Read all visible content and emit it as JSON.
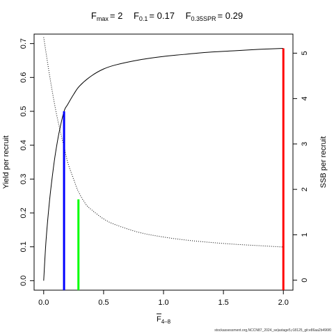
{
  "chart_data": {
    "type": "line",
    "title": {
      "fmax_label": "F",
      "fmax_sub": "max",
      "fmax_value": "= 2",
      "f01_label": "F",
      "f01_sub": "0.1",
      "f01_value": "= 0.17",
      "fspr_label": "F",
      "fspr_sub": "0.35SPR",
      "fspr_value": "= 0.29"
    },
    "xlabel": {
      "main": "F",
      "sub": "4–8"
    },
    "ylabel_left": "Yield per recruit",
    "ylabel_right": "SSB per recruit",
    "xlim": [
      -0.08,
      2.08
    ],
    "ylim_left": [
      -0.028,
      0.728
    ],
    "ylim_right": [
      -0.22,
      5.42
    ],
    "x_ticks": [
      {
        "value": 0,
        "label": "0.0"
      },
      {
        "value": 0.5,
        "label": "0.5"
      },
      {
        "value": 1,
        "label": "1.0"
      },
      {
        "value": 1.5,
        "label": "1.5"
      },
      {
        "value": 2,
        "label": "2.0"
      }
    ],
    "y_left_ticks": [
      {
        "value": 0,
        "label": "0.0"
      },
      {
        "value": 0.1,
        "label": "0.1"
      },
      {
        "value": 0.2,
        "label": "0.2"
      },
      {
        "value": 0.3,
        "label": "0.3"
      },
      {
        "value": 0.4,
        "label": "0.4"
      },
      {
        "value": 0.5,
        "label": "0.5"
      },
      {
        "value": 0.6,
        "label": "0.6"
      },
      {
        "value": 0.7,
        "label": "0.7"
      }
    ],
    "y_right_ticks": [
      {
        "value": 0,
        "label": "0"
      },
      {
        "value": 1,
        "label": "1"
      },
      {
        "value": 2,
        "label": "2"
      },
      {
        "value": 3,
        "label": "3"
      },
      {
        "value": 4,
        "label": "4"
      },
      {
        "value": 5,
        "label": "5"
      }
    ],
    "series": [
      {
        "id": "ypr",
        "axis": "left",
        "style": "solid",
        "color": "#000000",
        "x": [
          0,
          0.02,
          0.05,
          0.08,
          0.1,
          0.13,
          0.17,
          0.2,
          0.25,
          0.3,
          0.4,
          0.5,
          0.6,
          0.8,
          1.0,
          1.2,
          1.4,
          1.6,
          1.8,
          2.0
        ],
        "y": [
          0,
          0.12,
          0.24,
          0.33,
          0.38,
          0.44,
          0.5,
          0.52,
          0.55,
          0.575,
          0.605,
          0.625,
          0.637,
          0.652,
          0.662,
          0.669,
          0.675,
          0.679,
          0.683,
          0.686
        ]
      },
      {
        "id": "sspr",
        "axis": "right",
        "style": "dotted",
        "color": "#000000",
        "x": [
          0,
          0.05,
          0.1,
          0.15,
          0.17,
          0.2,
          0.25,
          0.29,
          0.35,
          0.4,
          0.5,
          0.6,
          0.8,
          1.0,
          1.2,
          1.4,
          1.6,
          1.8,
          2.0
        ],
        "y": [
          5.35,
          4.5,
          3.75,
          3.15,
          2.95,
          2.6,
          2.22,
          1.95,
          1.68,
          1.55,
          1.35,
          1.22,
          1.05,
          0.95,
          0.88,
          0.83,
          0.79,
          0.76,
          0.73
        ]
      }
    ],
    "reference_lines": [
      {
        "id": "f01",
        "x": 0.17,
        "y_top": 0.5,
        "axis": "left",
        "color": "#0000ff"
      },
      {
        "id": "fspr",
        "x": 0.29,
        "y_top": 0.24,
        "axis": "left",
        "color": "#00ff00"
      },
      {
        "id": "fmax",
        "x": 2.0,
        "y_top": 0.686,
        "axis": "left",
        "color": "#ff0000"
      }
    ],
    "grid": false
  },
  "caption": "stockassessment.org,NCCN87_2024_se|astage5,r18125_git:e86aa2b496f0"
}
